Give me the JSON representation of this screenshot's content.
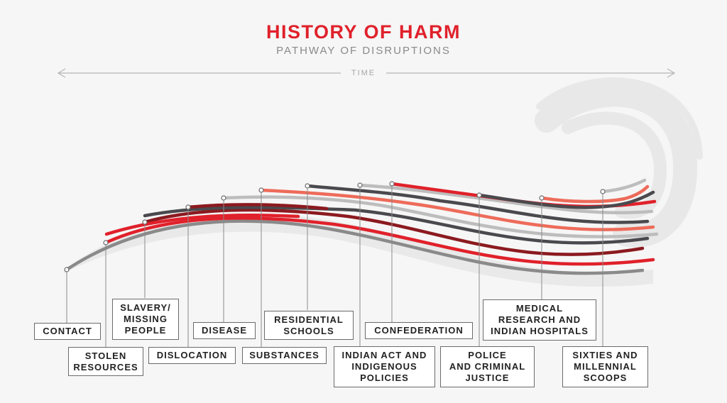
{
  "title": "HISTORY OF HARM",
  "subtitle": "PATHWAY OF DISRUPTIONS",
  "time_label": "TIME",
  "colors": {
    "red": "#e0212b",
    "dark_red": "#8b1a1f",
    "dark_gray": "#4a4a4e",
    "light_gray": "#bdbdbd",
    "salmon": "#ee6b5a",
    "mid_gray": "#8a8a8a"
  },
  "events": [
    {
      "key": "contact",
      "label": "CONTACT"
    },
    {
      "key": "stolen",
      "label": "STOLEN\nRESOURCES"
    },
    {
      "key": "slavery",
      "label": "SLAVERY/\nMISSING\nPEOPLE"
    },
    {
      "key": "dislocation",
      "label": "DISLOCATION"
    },
    {
      "key": "disease",
      "label": "DISEASE"
    },
    {
      "key": "substances",
      "label": "SUBSTANCES"
    },
    {
      "key": "residential",
      "label": "RESIDENTIAL\nSCHOOLS"
    },
    {
      "key": "indian_act",
      "label": "INDIAN ACT AND\nINDIGENOUS\nPOLICIES"
    },
    {
      "key": "confederation",
      "label": "CONFEDERATION"
    },
    {
      "key": "police",
      "label": "POLICE\nAND CRIMINAL\nJUSTICE"
    },
    {
      "key": "medical",
      "label": "MEDICAL\nRESEARCH AND\nINDIAN HOSPITALS"
    },
    {
      "key": "sixties",
      "label": "SIXTIES AND\nMILLENNIAL\nSCOOPS"
    }
  ]
}
